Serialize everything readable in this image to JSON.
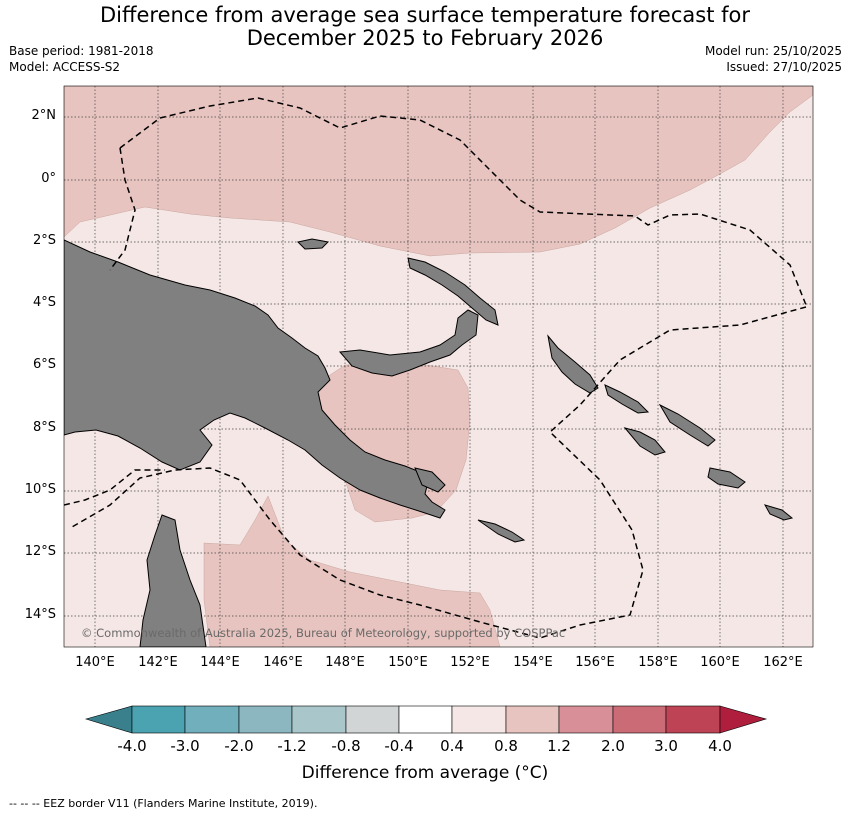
{
  "header": {
    "title_line1": "Difference from average sea surface temperature forecast for",
    "title_line2": "December 2025 to February 2026",
    "base_period": "Base period: 1981-2018",
    "model": "Model: ACCESS-S2",
    "model_run": "Model run: 25/10/2025",
    "issued": "Issued: 27/10/2025"
  },
  "map": {
    "lat_labels": [
      "2°N",
      "0°",
      "2°S",
      "4°S",
      "6°S",
      "8°S",
      "10°S",
      "12°S",
      "14°S"
    ],
    "lon_labels": [
      "140°E",
      "142°E",
      "144°E",
      "146°E",
      "148°E",
      "150°E",
      "152°E",
      "154°E",
      "156°E",
      "158°E",
      "160°E",
      "162°E"
    ],
    "copyright": "© Commonwealth of Australia 2025, Bureau of Meteorology, supported by COSPPac",
    "land_color": "#808080",
    "ocean_anomaly_colors": {
      "band_0.4_0.8": "#f5e7e5",
      "band_0.8_1.2": "#e7c4bf"
    }
  },
  "colorbar": {
    "ticks": [
      "-4.0",
      "-3.0",
      "-2.0",
      "-1.2",
      "-0.8",
      "-0.4",
      "0.4",
      "0.8",
      "1.2",
      "2.0",
      "3.0",
      "4.0"
    ],
    "colors": [
      "#3a7f8c",
      "#4ba3b2",
      "#71afbc",
      "#8cb7c1",
      "#a9c7cb",
      "#d1d5d6",
      "#ffffff",
      "#f5e7e5",
      "#e7c4bf",
      "#d88f98",
      "#ca6b75",
      "#be4455",
      "#b01e3e"
    ],
    "label": "Difference from average (°C)"
  },
  "legend": {
    "eez_text": "--  --  -- EEZ border V11 (Flanders Marine Institute, 2019)."
  }
}
